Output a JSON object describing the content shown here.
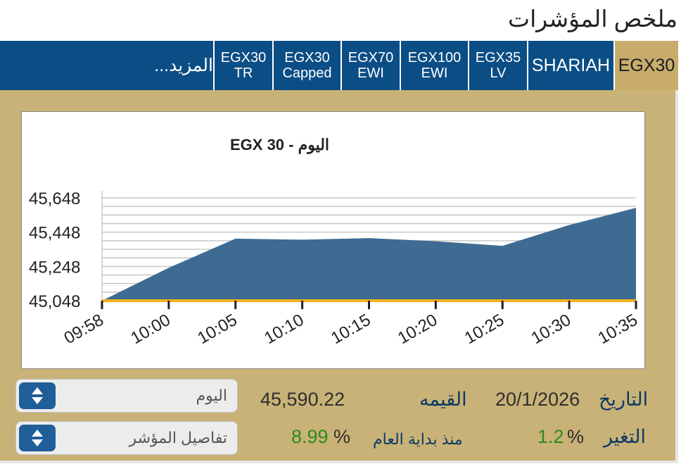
{
  "header": {
    "title": "ملخص المؤشرات"
  },
  "tabs": [
    {
      "l1": "EGX30",
      "l2": "",
      "active": true
    },
    {
      "l1": "SHARIAH",
      "l2": ""
    },
    {
      "l1": "EGX35",
      "l2": "LV"
    },
    {
      "l1": "EGX100",
      "l2": "EWI"
    },
    {
      "l1": "EGX70",
      "l2": "EWI"
    },
    {
      "l1": "EGX30",
      "l2": "Capped"
    },
    {
      "l1": "EGX30",
      "l2": "TR"
    }
  ],
  "more_tab": {
    "label": "المزيد..."
  },
  "chart_data": {
    "type": "area",
    "title": "EGX 30  - اليوم",
    "x": [
      "09:58",
      "10:00",
      "10:05",
      "10:10",
      "10:15",
      "10:20",
      "10:25",
      "10:30",
      "10:35"
    ],
    "values": [
      45048,
      45240,
      45410,
      45404,
      45413,
      45395,
      45368,
      45490,
      45590
    ],
    "yticks": [
      "45,048",
      "45,248",
      "45,448",
      "45,648"
    ],
    "ylim": [
      45048,
      45648
    ],
    "grid": true,
    "fill_color": "#3e6b92",
    "baseline_color": "#f2b21b"
  },
  "details": {
    "date_label": "التاريخ",
    "date_value": "20/1/2026",
    "value_label": "القيمه",
    "value_value": "45,590.22",
    "change_label": "التغير",
    "change_pct": "1.2",
    "ytd_label": "منذ بداية العام",
    "ytd_pct": "8.99",
    "pct_sign": "%"
  },
  "selects": {
    "period": "اليوم",
    "info": "تفاصيل المؤشر"
  },
  "colors": {
    "tab_bg": "#0b4d85",
    "active_tab": "#c7ac6c",
    "panel": "#c9b277"
  }
}
